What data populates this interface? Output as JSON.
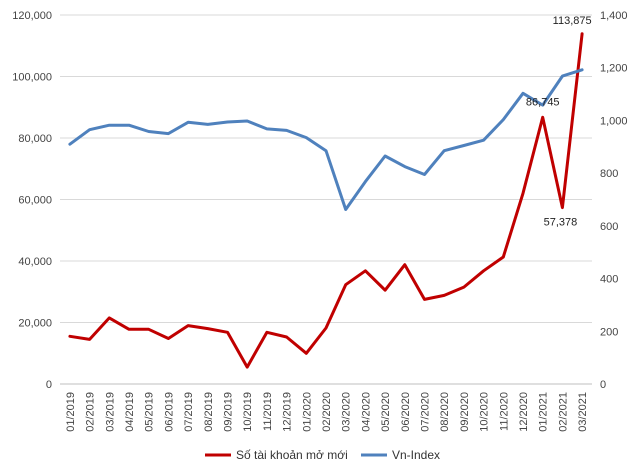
{
  "chart_data": {
    "type": "line",
    "categories": [
      "01/2019",
      "02/2019",
      "03/2019",
      "04/2019",
      "05/2019",
      "06/2019",
      "07/2019",
      "08/2019",
      "09/2019",
      "10/2019",
      "11/2019",
      "12/2019",
      "01/2020",
      "02/2020",
      "03/2020",
      "04/2020",
      "05/2020",
      "06/2020",
      "07/2020",
      "08/2020",
      "09/2020",
      "10/2020",
      "11/2020",
      "12/2020",
      "01/2021",
      "02/2021",
      "03/2021"
    ],
    "series": [
      {
        "name": "Số tài khoản mở mới",
        "axis": "left",
        "color": "#c00000",
        "values": [
          15500,
          14500,
          21500,
          17800,
          17800,
          14800,
          19000,
          18000,
          16800,
          5500,
          16800,
          15300,
          10000,
          18200,
          32300,
          36800,
          30500,
          38800,
          27500,
          28800,
          31500,
          36800,
          41300,
          62000,
          86745,
          57378,
          113875
        ]
      },
      {
        "name": "Vn-Index",
        "axis": "right",
        "color": "#4f81bd",
        "values": [
          910,
          965,
          982,
          982,
          958,
          950,
          993,
          985,
          994,
          998,
          968,
          962,
          935,
          885,
          662,
          768,
          865,
          825,
          795,
          885,
          905,
          925,
          1003,
          1103,
          1058,
          1168,
          1192
        ]
      }
    ],
    "annotations": [
      {
        "series": 0,
        "index": 24,
        "text": "86,745"
      },
      {
        "series": 0,
        "index": 25,
        "text": "57,378"
      },
      {
        "series": 0,
        "index": 26,
        "text": "113,875"
      }
    ],
    "y_left": {
      "ylim": [
        0,
        120000
      ],
      "ticks": [
        0,
        20000,
        40000,
        60000,
        80000,
        100000,
        120000
      ],
      "tick_labels": [
        "0",
        "20,000",
        "40,000",
        "60,000",
        "80,000",
        "100,000",
        "120,000"
      ]
    },
    "y_right": {
      "ylim": [
        0,
        1400
      ],
      "ticks": [
        0,
        200,
        400,
        600,
        800,
        1000,
        1200,
        1400
      ],
      "tick_labels": [
        "0",
        "200",
        "400",
        "600",
        "800",
        "1,000",
        "1,200",
        "1,400"
      ]
    },
    "grid": true,
    "legend_position": "bottom"
  }
}
